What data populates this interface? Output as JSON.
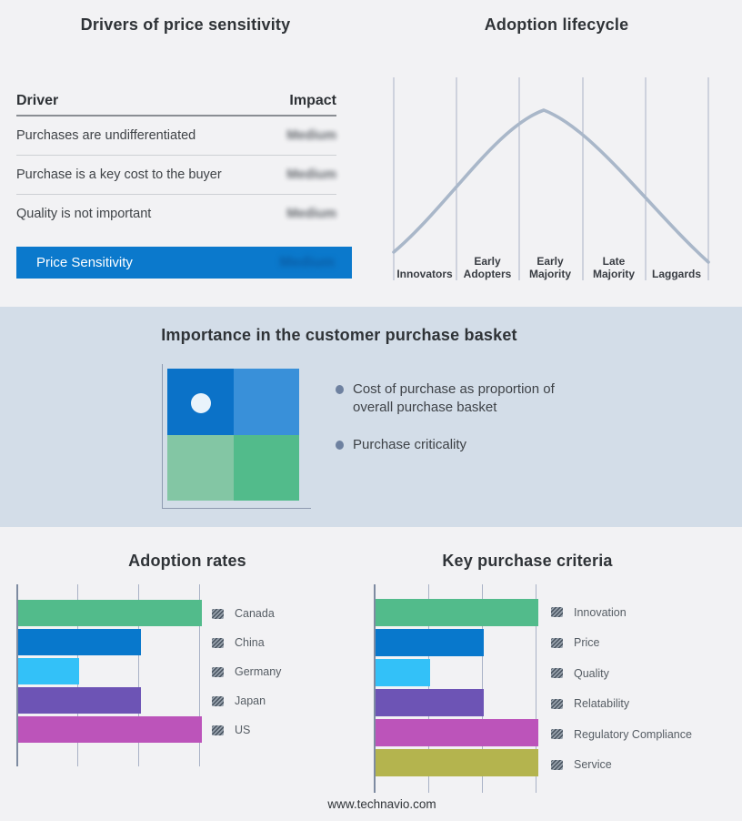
{
  "footer": {
    "url": "www.technavio.com"
  },
  "palette": {
    "page_background": "#f2f2f4",
    "band_background": "#d3dde8",
    "highlight_blue": "#0b79cc",
    "curve_gray_blue": "#a9b7c9",
    "gridline": "#a9b2c6",
    "axis": "#7e8ba1"
  },
  "chart_data": [
    {
      "type": "table",
      "title": "Drivers of price sensitivity",
      "columns": [
        "Driver",
        "Impact"
      ],
      "rows": [
        [
          "Purchases are undifferentiated",
          "Medium"
        ],
        [
          "Purchase is a key cost to the buyer",
          "Medium"
        ],
        [
          "Quality is not important",
          "Medium"
        ]
      ],
      "highlight_row": [
        "Price Sensitivity",
        "Medium"
      ],
      "impact_values_blurred": true
    },
    {
      "type": "line",
      "title": "Adoption lifecycle",
      "shape": "bell curve",
      "categories": [
        "Innovators",
        "Early\nAdopters",
        "Early\nMajority",
        "Late\nMajority",
        "Laggards"
      ],
      "curve_color": "#a9b7c9",
      "grid": "vertical category separators only, no y-axis"
    },
    {
      "type": "scatter",
      "title": "Importance in the customer purchase basket",
      "quadrant_colors": {
        "top_left": "#0b72c8",
        "top_right": "#3990d9",
        "bottom_left": "#83c6a4",
        "bottom_right": "#52bb8b"
      },
      "marker": {
        "quadrant": "top_left",
        "color": "#e9f3fb"
      },
      "bullets": [
        "Cost of purchase as proportion of\noverall purchase basket",
        "Purchase criticality"
      ]
    },
    {
      "type": "bar",
      "title": "Adoption rates",
      "orientation": "horizontal",
      "categories": [
        "Canada",
        "China",
        "Germany",
        "Japan",
        "US"
      ],
      "values": [
        3,
        2,
        1,
        2,
        3
      ],
      "xmax": 3,
      "value_units": "relative gridline units (no numeric axis labels shown)",
      "colors": [
        "#52bb8b",
        "#0878cc",
        "#33c1f8",
        "#6d54b5",
        "#bc54ba"
      ],
      "legend_position": "right",
      "legend_swatch_style": "diagonal-hatched gray"
    },
    {
      "type": "bar",
      "title": "Key purchase criteria",
      "orientation": "horizontal",
      "categories": [
        "Innovation",
        "Price",
        "Quality",
        "Relatability",
        "Regulatory Compliance",
        "Service"
      ],
      "values": [
        3,
        2,
        1,
        2,
        3,
        3
      ],
      "xmax": 3,
      "value_units": "relative gridline units (no numeric axis labels shown)",
      "colors": [
        "#52bb8b",
        "#0878cc",
        "#33c1f8",
        "#6d54b5",
        "#bc54ba",
        "#b4b44e"
      ],
      "legend_position": "right",
      "legend_swatch_style": "diagonal-hatched gray"
    }
  ]
}
